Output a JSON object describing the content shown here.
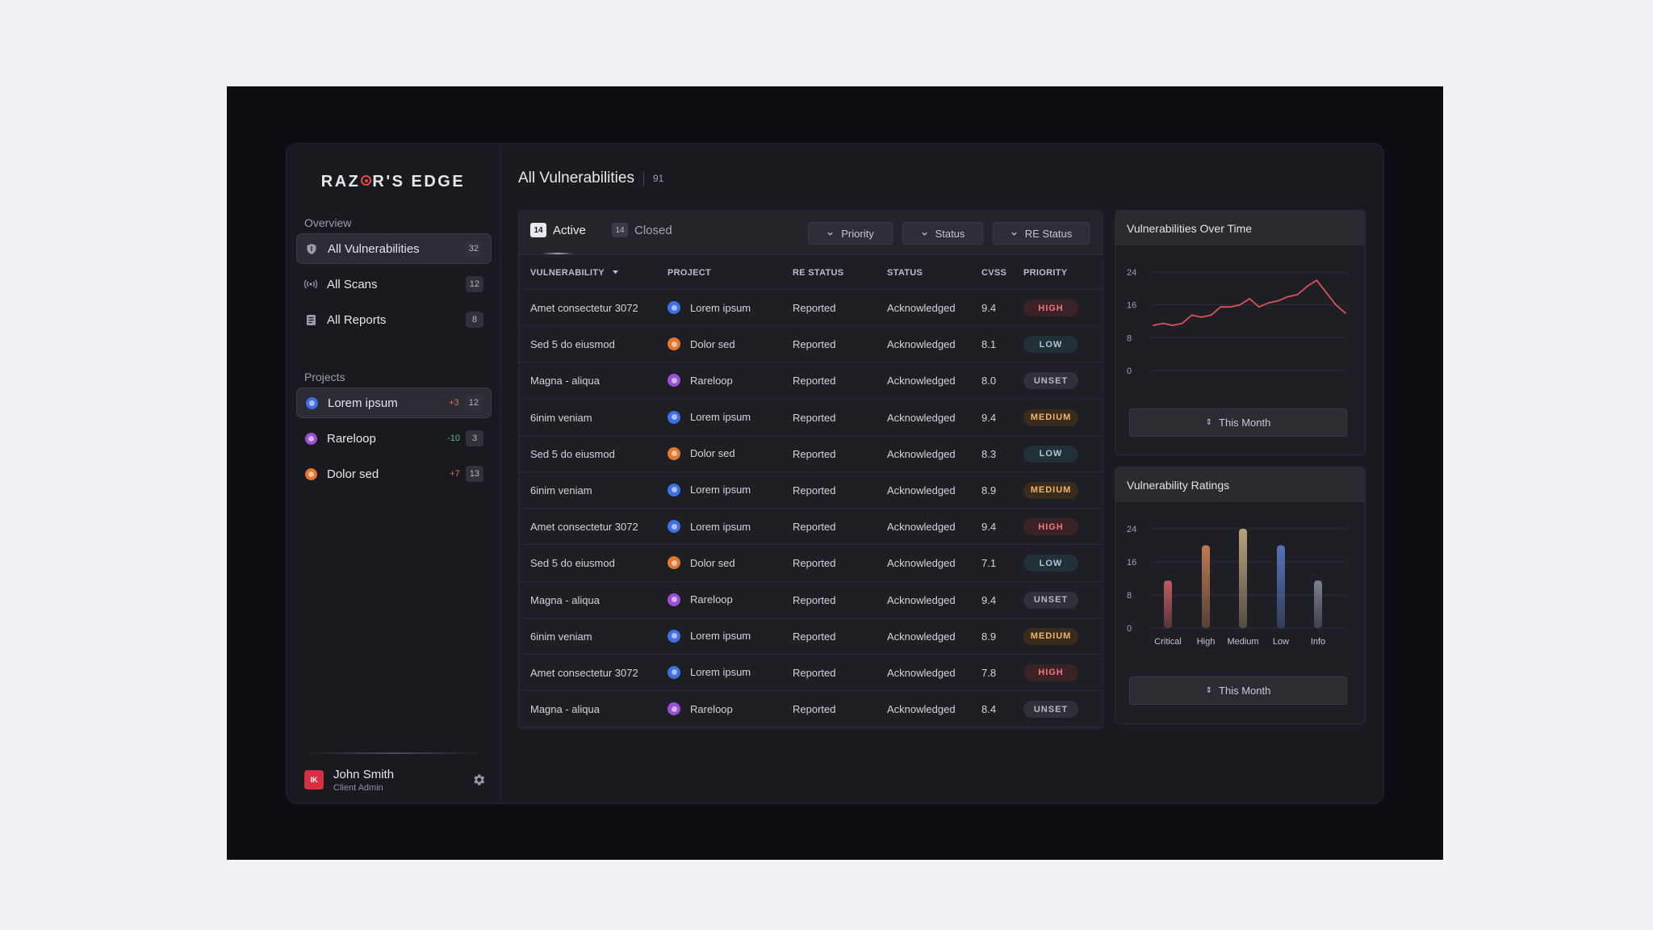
{
  "app": {
    "brand_pre": "RAZ",
    "brand_post": "R'S EDGE"
  },
  "sidebar": {
    "overview_label": "Overview",
    "nav": [
      {
        "label": "All Vulnerabilities",
        "count": "32",
        "icon": "shield-icon"
      },
      {
        "label": "All Scans",
        "count": "12",
        "icon": "broadcast-icon"
      },
      {
        "label": "All Reports",
        "count": "8",
        "icon": "report-icon"
      }
    ],
    "projects_label": "Projects",
    "projects": [
      {
        "name": "Lorem ipsum",
        "delta": "+3",
        "count": "12",
        "color": "#3f6fe0"
      },
      {
        "name": "Rareloop",
        "delta": "-10",
        "count": "3",
        "color": "#9b4fd3"
      },
      {
        "name": "Dolor sed",
        "delta": "+7",
        "count": "13",
        "color": "#e0772f"
      }
    ],
    "user": {
      "initials": "IK",
      "name": "John Smith",
      "role": "Client Admin"
    }
  },
  "header": {
    "title": "All Vulnerabilities",
    "count": "91"
  },
  "tabs": [
    {
      "label": "Active",
      "count": "14"
    },
    {
      "label": "Closed",
      "count": "14"
    }
  ],
  "filters": [
    "Priority",
    "Status",
    "RE Status"
  ],
  "table": {
    "columns": [
      "VULNERABILITY",
      "PROJECT",
      "RE STATUS",
      "STATUS",
      "CVSS",
      "PRIORITY"
    ],
    "rows": [
      {
        "vulnerability": "Amet consectetur 3072",
        "project": "Lorem ipsum",
        "project_color": "blue",
        "re_status": "Reported",
        "status": "Acknowledged",
        "cvss": "9.4",
        "priority": "HIGH"
      },
      {
        "vulnerability": "Sed 5 do eiusmod",
        "project": "Dolor sed",
        "project_color": "orange",
        "re_status": "Reported",
        "status": "Acknowledged",
        "cvss": "8.1",
        "priority": "LOW"
      },
      {
        "vulnerability": "Magna - aliqua",
        "project": "Rareloop",
        "project_color": "purple",
        "re_status": "Reported",
        "status": "Acknowledged",
        "cvss": "8.0",
        "priority": "UNSET"
      },
      {
        "vulnerability": "6inim veniam",
        "project": "Lorem ipsum",
        "project_color": "blue",
        "re_status": "Reported",
        "status": "Acknowledged",
        "cvss": "9.4",
        "priority": "MEDIUM"
      },
      {
        "vulnerability": "Sed 5 do eiusmod",
        "project": "Dolor sed",
        "project_color": "orange",
        "re_status": "Reported",
        "status": "Acknowledged",
        "cvss": "8.3",
        "priority": "LOW"
      },
      {
        "vulnerability": "6inim veniam",
        "project": "Lorem ipsum",
        "project_color": "blue",
        "re_status": "Reported",
        "status": "Acknowledged",
        "cvss": "8.9",
        "priority": "MEDIUM"
      },
      {
        "vulnerability": "Amet consectetur 3072",
        "project": "Lorem ipsum",
        "project_color": "blue",
        "re_status": "Reported",
        "status": "Acknowledged",
        "cvss": "9.4",
        "priority": "HIGH"
      },
      {
        "vulnerability": "Sed 5 do eiusmod",
        "project": "Dolor sed",
        "project_color": "orange",
        "re_status": "Reported",
        "status": "Acknowledged",
        "cvss": "7.1",
        "priority": "LOW"
      },
      {
        "vulnerability": "Magna - aliqua",
        "project": "Rareloop",
        "project_color": "purple",
        "re_status": "Reported",
        "status": "Acknowledged",
        "cvss": "9.4",
        "priority": "UNSET"
      },
      {
        "vulnerability": "6inim veniam",
        "project": "Lorem ipsum",
        "project_color": "blue",
        "re_status": "Reported",
        "status": "Acknowledged",
        "cvss": "8.9",
        "priority": "MEDIUM"
      },
      {
        "vulnerability": "Amet consectetur 3072",
        "project": "Lorem ipsum",
        "project_color": "blue",
        "re_status": "Reported",
        "status": "Acknowledged",
        "cvss": "7.8",
        "priority": "HIGH"
      },
      {
        "vulnerability": "Magna - aliqua",
        "project": "Rareloop",
        "project_color": "purple",
        "re_status": "Reported",
        "status": "Acknowledged",
        "cvss": "8.4",
        "priority": "UNSET"
      }
    ]
  },
  "panels": {
    "over_time": {
      "title": "Vulnerabilities Over Time",
      "button": "This Month"
    },
    "ratings": {
      "title": "Vulnerability Ratings",
      "button": "This Month"
    }
  },
  "chart_data": [
    {
      "type": "line",
      "title": "Vulnerabilities Over Time",
      "ylim": [
        0,
        24
      ],
      "yticks": [
        "24",
        "16",
        "8",
        "0"
      ],
      "grid": true,
      "color": "#e0505a",
      "series": [
        {
          "values": [
            11,
            11.5,
            11,
            11.5,
            13.5,
            13,
            13.5,
            15.5,
            15.5,
            16,
            17.5,
            15.5,
            16.5,
            17,
            18,
            18.5,
            20.5,
            22,
            19,
            16,
            14
          ]
        }
      ]
    },
    {
      "type": "bar",
      "title": "Vulnerability Ratings",
      "ylim": [
        0,
        24
      ],
      "yticks": [
        "24",
        "16",
        "8",
        "0"
      ],
      "grid": true,
      "categories": [
        "Critical",
        "High",
        "Medium",
        "Low",
        "Info"
      ],
      "values": [
        11.5,
        20,
        24,
        20,
        11.5
      ],
      "colors": [
        "#c05d62",
        "#c07a52",
        "#b8a27a",
        "#5474b8",
        "#7b8090"
      ]
    }
  ]
}
